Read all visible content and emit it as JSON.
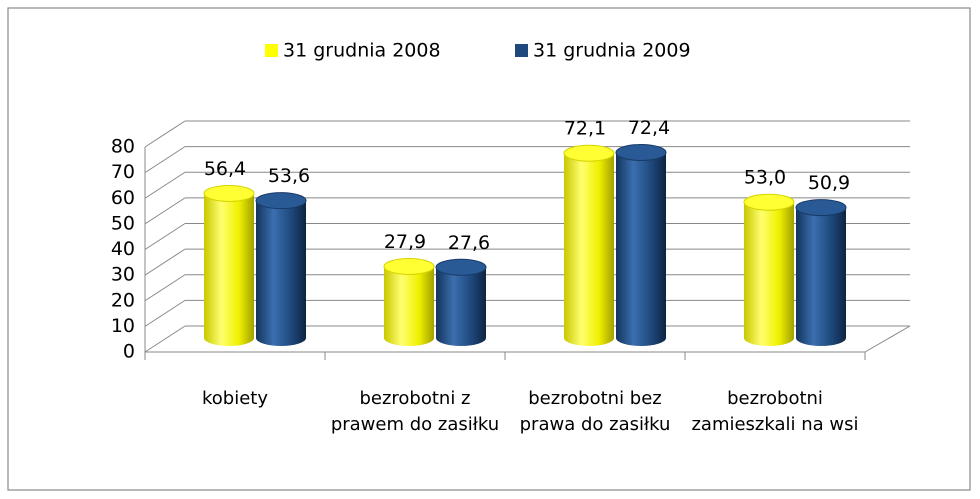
{
  "chart_data": {
    "type": "bar3d",
    "categories": [
      "kobiety",
      "bezrobotni z prawem do zasiłku",
      "bezrobotni bez prawa do zasiłku",
      "bezrobotni zamieszkali na wsi"
    ],
    "series": [
      {
        "name": "31 grudnia 2008",
        "color": "#ffff00",
        "values": [
          56.4,
          27.9,
          72.1,
          53.0
        ],
        "value_labels": [
          "56,4",
          "27,9",
          "72,1",
          "53,0"
        ]
      },
      {
        "name": "31 grudnia 2009",
        "color": "#1f497d",
        "values": [
          53.6,
          27.6,
          72.4,
          50.9
        ],
        "value_labels": [
          "53,6",
          "27,6",
          "72,4",
          "50,9"
        ]
      }
    ],
    "ylim": [
      0,
      80
    ],
    "yticks": [
      0,
      10,
      20,
      30,
      40,
      50,
      60,
      70,
      80
    ],
    "grid": true,
    "legend": "top"
  }
}
